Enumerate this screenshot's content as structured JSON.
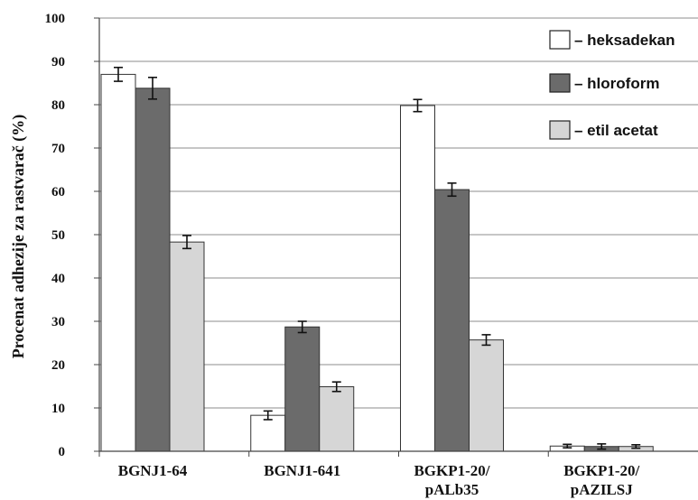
{
  "chart_data": {
    "type": "bar",
    "title": "",
    "xlabel": "",
    "ylabel": "Procenat adhezije za rastvarač (%)",
    "ylim": [
      0,
      100
    ],
    "yticks": [
      0,
      10,
      20,
      30,
      40,
      50,
      60,
      70,
      80,
      90,
      100
    ],
    "grid": true,
    "legend_position": "top-right",
    "categories": [
      [
        "BGNJ1-64"
      ],
      [
        "BGNJ1-641"
      ],
      [
        "BGKP1-20/",
        "pALb35"
      ],
      [
        "BGKP1-20/",
        "pAZILSJ"
      ]
    ],
    "series": [
      {
        "name": "heksadekan",
        "legend_label": "– heksadekan",
        "color": "#ffffff",
        "values": [
          87,
          8.3,
          79.8,
          1.2
        ],
        "errors": [
          1.6,
          1.0,
          1.4,
          0.4
        ]
      },
      {
        "name": "hloroform",
        "legend_label": "– hloroform",
        "color": "#6b6b6b",
        "values": [
          83.8,
          28.7,
          60.4,
          1.1
        ],
        "errors": [
          2.5,
          1.3,
          1.5,
          0.6
        ]
      },
      {
        "name": "etil acetat",
        "legend_label": "– etil acetat",
        "color": "#d6d6d6",
        "values": [
          48.3,
          14.9,
          25.7,
          1.1
        ],
        "errors": [
          1.5,
          1.1,
          1.2,
          0.4
        ]
      }
    ]
  }
}
